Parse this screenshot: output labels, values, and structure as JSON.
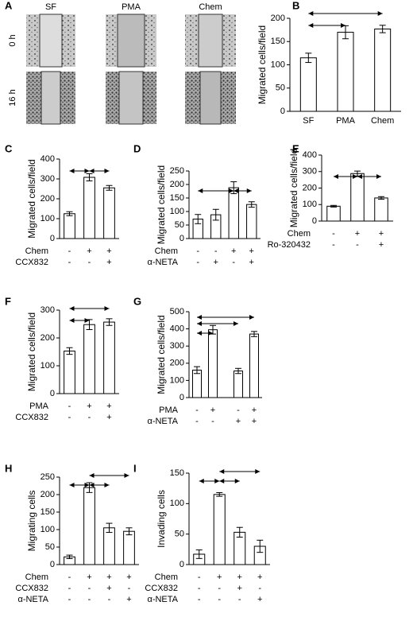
{
  "panel_a": {
    "letter": "A",
    "columns": [
      "SF",
      "PMA",
      "Chem"
    ],
    "rows": [
      "0 h",
      "16 h"
    ]
  },
  "chart_data": [
    {
      "type": "bar",
      "letter": "B",
      "ylabel": "Migrated cells/field",
      "categories": [
        "SF",
        "PMA",
        "Chem"
      ],
      "values": [
        115,
        170,
        177
      ],
      "errors": [
        10,
        14,
        8
      ],
      "ylim": [
        0,
        200
      ],
      "yticks": [
        0,
        50,
        100,
        150,
        200
      ]
    },
    {
      "type": "bar",
      "letter": "C",
      "ylabel": "Migrated cells/field",
      "conditions": [
        {
          "name": "Chem",
          "signs": [
            "-",
            "+",
            "+"
          ]
        },
        {
          "name": "CCX832",
          "signs": [
            "-",
            "-",
            "+"
          ]
        }
      ],
      "values": [
        125,
        308,
        255
      ],
      "errors": [
        10,
        18,
        12
      ],
      "ylim": [
        0,
        400
      ],
      "yticks": [
        0,
        100,
        200,
        300,
        400
      ]
    },
    {
      "type": "bar",
      "letter": "D",
      "ylabel": "Migrated cells/field",
      "conditions": [
        {
          "name": "Chem",
          "signs": [
            "-",
            "-",
            "+",
            "+"
          ]
        },
        {
          "name": "α-NETA",
          "signs": [
            "-",
            "+",
            "-",
            "+"
          ]
        }
      ],
      "values": [
        72,
        88,
        188,
        126
      ],
      "errors": [
        17,
        20,
        22,
        10
      ],
      "ylim": [
        0,
        250
      ],
      "yticks": [
        0,
        50,
        100,
        150,
        200,
        250
      ]
    },
    {
      "type": "bar",
      "letter": "E",
      "ylabel": "Migrated cells/field",
      "conditions": [
        {
          "name": "Chem",
          "signs": [
            "-",
            "+",
            "+"
          ]
        },
        {
          "name": "Ro-320432",
          "signs": [
            "-",
            "-",
            "+"
          ]
        }
      ],
      "values": [
        90,
        288,
        140
      ],
      "errors": [
        5,
        15,
        8
      ],
      "ylim": [
        0,
        400
      ],
      "yticks": [
        0,
        100,
        200,
        300,
        400
      ]
    },
    {
      "type": "bar",
      "letter": "F",
      "ylabel": "Migrated cells/field",
      "conditions": [
        {
          "name": "PMA",
          "signs": [
            "-",
            "+",
            "+"
          ]
        },
        {
          "name": "CCX832",
          "signs": [
            "-",
            "-",
            "+"
          ]
        }
      ],
      "values": [
        153,
        248,
        257
      ],
      "errors": [
        12,
        18,
        12
      ],
      "ylim": [
        0,
        300
      ],
      "yticks": [
        0,
        100,
        200,
        300
      ]
    },
    {
      "type": "bar",
      "letter": "G",
      "ylabel": "Migrated cells/field",
      "conditions": [
        {
          "name": "PMA",
          "signs": [
            "-",
            "+",
            "-",
            "+"
          ]
        },
        {
          "name": "α-NETA",
          "signs": [
            "-",
            "-",
            "+",
            "+"
          ]
        }
      ],
      "values": [
        160,
        395,
        155,
        370
      ],
      "errors": [
        20,
        25,
        15,
        15
      ],
      "ylim": [
        0,
        500
      ],
      "yticks": [
        0,
        100,
        200,
        300,
        400,
        500
      ]
    },
    {
      "type": "bar",
      "letter": "H",
      "ylabel": "Migrating cells",
      "conditions": [
        {
          "name": "Chem",
          "signs": [
            "-",
            "+",
            "+",
            "+"
          ]
        },
        {
          "name": "CCX832",
          "signs": [
            "-",
            "-",
            "+",
            "-"
          ]
        },
        {
          "name": "α-NETA",
          "signs": [
            "-",
            "-",
            "-",
            "+"
          ]
        }
      ],
      "values": [
        22,
        220,
        105,
        95
      ],
      "errors": [
        5,
        14,
        13,
        10
      ],
      "ylim": [
        0,
        250
      ],
      "yticks": [
        0,
        50,
        100,
        150,
        200,
        250
      ]
    },
    {
      "type": "bar",
      "letter": "I",
      "ylabel": "Invading cells",
      "conditions": [
        {
          "name": "Chem",
          "signs": [
            "-",
            "+",
            "+",
            "+"
          ]
        },
        {
          "name": "CCX832",
          "signs": [
            "-",
            "-",
            "+",
            "-"
          ]
        },
        {
          "name": "α-NETA",
          "signs": [
            "-",
            "-",
            "-",
            "+"
          ]
        }
      ],
      "values": [
        17,
        115,
        53,
        30
      ],
      "errors": [
        7,
        3,
        8,
        10
      ],
      "ylim": [
        0,
        150
      ],
      "yticks": [
        0,
        50,
        100,
        150
      ]
    }
  ]
}
